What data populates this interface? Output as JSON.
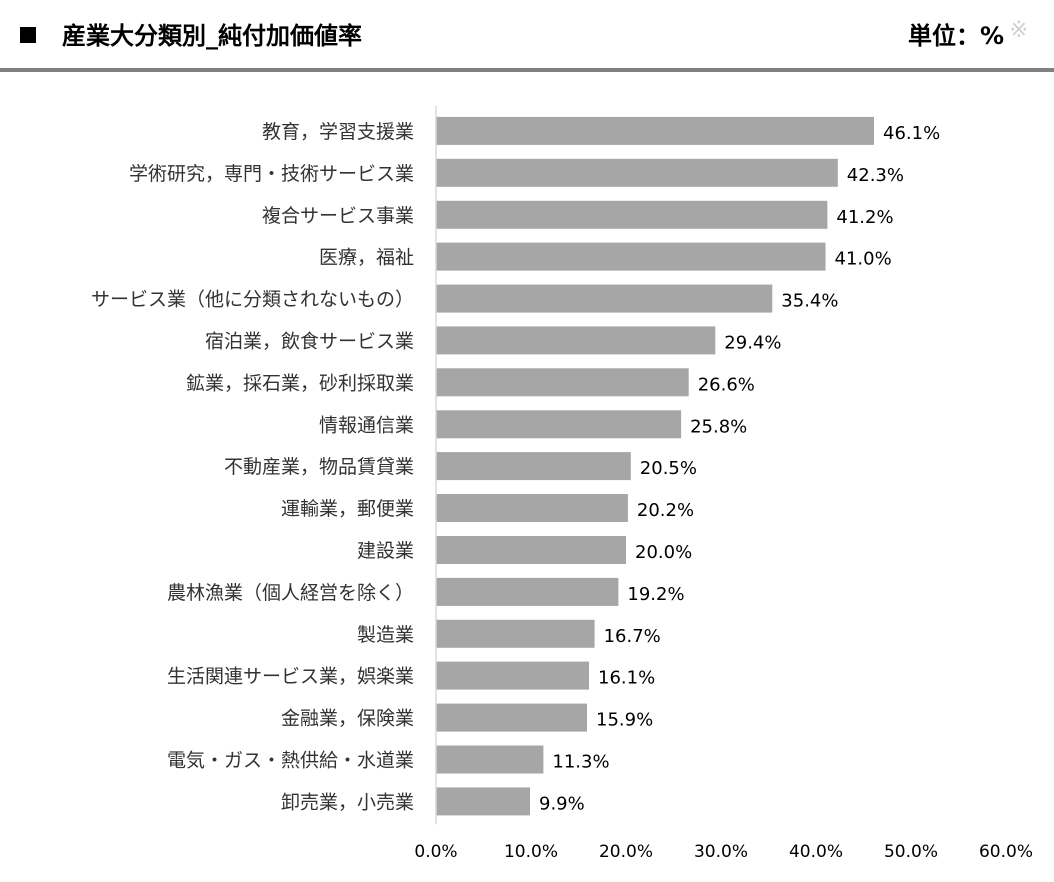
{
  "header": {
    "title": "産業大分類別_純付加価値率",
    "unit": "単位：%",
    "unit_mark": "※"
  },
  "chart_data": {
    "type": "bar",
    "orientation": "horizontal",
    "categories": [
      "教育，学習支援業",
      "学術研究，専門・技術サービス業",
      "複合サービス事業",
      "医療，福祉",
      "サービス業（他に分類されないもの）",
      "宿泊業，飲食サービス業",
      "鉱業，採石業，砂利採取業",
      "情報通信業",
      "不動産業，物品賃貸業",
      "運輸業，郵便業",
      "建設業",
      "農林漁業（個人経営を除く）",
      "製造業",
      "生活関連サービス業，娯楽業",
      "金融業，保険業",
      "電気・ガス・熱供給・水道業",
      "卸売業，小売業"
    ],
    "values": [
      46.1,
      42.3,
      41.2,
      41.0,
      35.4,
      29.4,
      26.6,
      25.8,
      20.5,
      20.2,
      20.0,
      19.2,
      16.7,
      16.1,
      15.9,
      11.3,
      9.9
    ],
    "data_labels": [
      "46.1%",
      "42.3%",
      "41.2%",
      "41.0%",
      "35.4%",
      "29.4%",
      "26.6%",
      "25.8%",
      "20.5%",
      "20.2%",
      "20.0%",
      "19.2%",
      "16.7%",
      "16.1%",
      "15.9%",
      "11.3%",
      "9.9%"
    ],
    "xticks": [
      0,
      10,
      20,
      30,
      40,
      50,
      60
    ],
    "xtick_labels": [
      "0.0%",
      "10.0%",
      "20.0%",
      "30.0%",
      "40.0%",
      "50.0%",
      "60.0%"
    ],
    "xlim": [
      0,
      60
    ],
    "grid": false,
    "legend": "none",
    "bar_color": "#a6a6a6",
    "axis_color": "#d9d9d9"
  }
}
